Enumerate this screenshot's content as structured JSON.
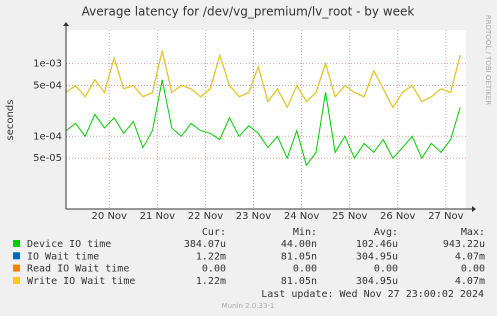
{
  "chart_data": {
    "type": "line",
    "title": "Average latency for /dev/vg_premium/lv_root - by week",
    "y_label": "seconds",
    "side_label": "RRDTOOL / TOBI OETIKER",
    "log_y": true,
    "grid": true,
    "xlim": [
      19.1,
      27.42
    ],
    "xticks": [
      {
        "value": 20,
        "label": "20 Nov"
      },
      {
        "value": 21,
        "label": "21 Nov"
      },
      {
        "value": 22,
        "label": "22 Nov"
      },
      {
        "value": 23,
        "label": "23 Nov"
      },
      {
        "value": 24,
        "label": "24 Nov"
      },
      {
        "value": 25,
        "label": "25 Nov"
      },
      {
        "value": 26,
        "label": "26 Nov"
      },
      {
        "value": 27,
        "label": "27 Nov"
      }
    ],
    "ylim": [
      1e-05,
      0.0029
    ],
    "yticks": [
      {
        "value": 5e-05,
        "label": "5e-05"
      },
      {
        "value": 0.0001,
        "label": "1e-04"
      },
      {
        "value": 0.0005,
        "label": "5e-04"
      },
      {
        "value": 0.001,
        "label": "1e-03"
      }
    ],
    "x": [
      19.1,
      19.3,
      19.5,
      19.7,
      19.9,
      20.1,
      20.3,
      20.5,
      20.7,
      20.9,
      21.1,
      21.3,
      21.5,
      21.7,
      21.9,
      22.1,
      22.3,
      22.5,
      22.7,
      22.9,
      23.1,
      23.3,
      23.5,
      23.7,
      23.9,
      24.1,
      24.3,
      24.5,
      24.7,
      24.9,
      25.1,
      25.3,
      25.5,
      25.7,
      25.9,
      26.1,
      26.3,
      26.5,
      26.7,
      26.9,
      27.1,
      27.3
    ],
    "legend_headers": [
      "Cur:",
      "Min:",
      "Avg:",
      "Max:"
    ],
    "series": [
      {
        "name": "Device IO time",
        "color": "#00cc00",
        "cur": "384.07u",
        "min": "44.00n",
        "avg": "102.46u",
        "max": "943.22u",
        "values": [
          0.00012,
          0.00015,
          0.0001,
          0.0002,
          0.00013,
          0.00018,
          0.00011,
          0.00016,
          7e-05,
          0.00012,
          0.0006,
          0.00013,
          0.0001,
          0.00015,
          0.00012,
          0.00011,
          9e-05,
          0.00018,
          0.0001,
          0.00014,
          0.00011,
          7e-05,
          0.0001,
          5e-05,
          0.00012,
          4e-05,
          6e-05,
          0.0004,
          6e-05,
          0.0001,
          5e-05,
          8e-05,
          6e-05,
          9e-05,
          5e-05,
          7e-05,
          0.0001,
          5e-05,
          8e-05,
          6e-05,
          9e-05,
          0.00025
        ]
      },
      {
        "name": "IO Wait time",
        "color": "#0066b3",
        "cur": "1.22m",
        "min": "81.05n",
        "avg": "304.95u",
        "max": "4.07m",
        "values": [
          0.0004,
          0.0005,
          0.00035,
          0.0006,
          0.0004,
          0.0012,
          0.00045,
          0.0005,
          0.00035,
          0.0004,
          0.0015,
          0.0004,
          0.0005,
          0.00045,
          0.00035,
          0.00045,
          0.0013,
          0.0005,
          0.00035,
          0.0004,
          0.0009,
          0.0003,
          0.00045,
          0.00025,
          0.0005,
          0.0003,
          0.0004,
          0.001,
          0.00035,
          0.0005,
          0.0004,
          0.00035,
          0.0008,
          0.00045,
          0.00025,
          0.0004,
          0.0005,
          0.0003,
          0.00035,
          0.00045,
          0.0004,
          0.0013
        ]
      },
      {
        "name": "Read IO Wait time",
        "color": "#ff8000",
        "cur": "0.00",
        "min": "0.00",
        "avg": "0.00",
        "max": "0.00"
      },
      {
        "name": "Write IO Wait time",
        "color": "#ffcc00",
        "cur": "1.22m",
        "min": "81.05n",
        "avg": "304.95u",
        "max": "4.07m",
        "values": [
          0.0004,
          0.0005,
          0.00035,
          0.0006,
          0.0004,
          0.0012,
          0.00045,
          0.0005,
          0.00035,
          0.0004,
          0.0015,
          0.0004,
          0.0005,
          0.00045,
          0.00035,
          0.00045,
          0.0013,
          0.0005,
          0.00035,
          0.0004,
          0.0009,
          0.0003,
          0.00045,
          0.00025,
          0.0005,
          0.0003,
          0.0004,
          0.001,
          0.00035,
          0.0005,
          0.0004,
          0.00035,
          0.0008,
          0.00045,
          0.00025,
          0.0004,
          0.0005,
          0.0003,
          0.00035,
          0.00045,
          0.0004,
          0.0013
        ]
      }
    ],
    "last_update": "Last update:  Wed Nov 27 23:00:02 2024",
    "version": "Munin 2.0.33-1"
  }
}
